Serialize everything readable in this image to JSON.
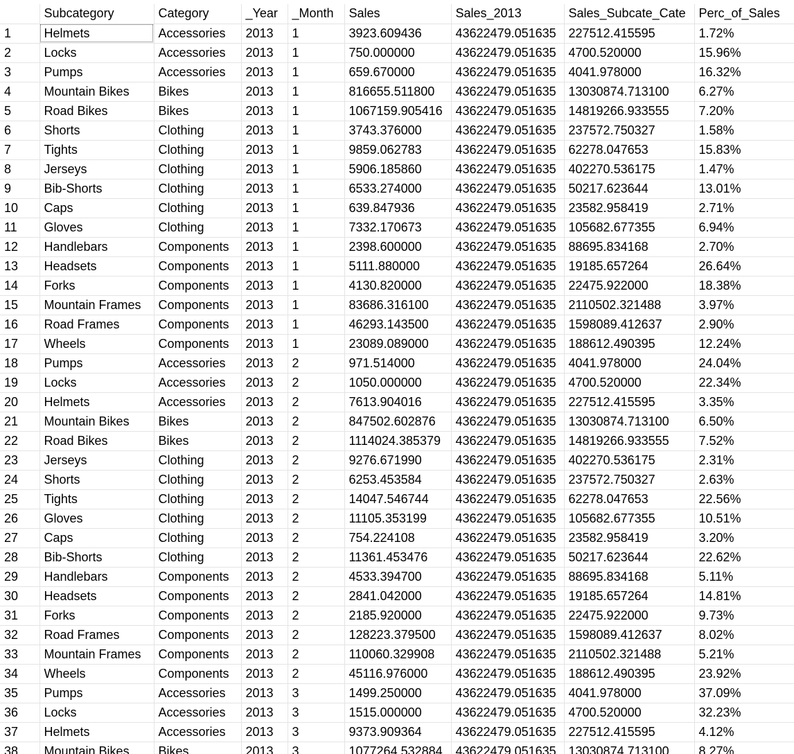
{
  "results_grid": {
    "columns": [
      "",
      "Subcategory",
      "Category",
      "_Year",
      "_Month",
      "Sales",
      "Sales_2013",
      "Sales_Subcate_Cate",
      "Perc_of_Sales"
    ],
    "rows": [
      [
        "1",
        "Helmets",
        "Accessories",
        "2013",
        "1",
        "3923.609436",
        "43622479.051635",
        "227512.415595",
        "1.72%"
      ],
      [
        "2",
        "Locks",
        "Accessories",
        "2013",
        "1",
        "750.000000",
        "43622479.051635",
        "4700.520000",
        "15.96%"
      ],
      [
        "3",
        "Pumps",
        "Accessories",
        "2013",
        "1",
        "659.670000",
        "43622479.051635",
        "4041.978000",
        "16.32%"
      ],
      [
        "4",
        "Mountain Bikes",
        "Bikes",
        "2013",
        "1",
        "816655.511800",
        "43622479.051635",
        "13030874.713100",
        "6.27%"
      ],
      [
        "5",
        "Road Bikes",
        "Bikes",
        "2013",
        "1",
        "1067159.905416",
        "43622479.051635",
        "14819266.933555",
        "7.20%"
      ],
      [
        "6",
        "Shorts",
        "Clothing",
        "2013",
        "1",
        "3743.376000",
        "43622479.051635",
        "237572.750327",
        "1.58%"
      ],
      [
        "7",
        "Tights",
        "Clothing",
        "2013",
        "1",
        "9859.062783",
        "43622479.051635",
        "62278.047653",
        "15.83%"
      ],
      [
        "8",
        "Jerseys",
        "Clothing",
        "2013",
        "1",
        "5906.185860",
        "43622479.051635",
        "402270.536175",
        "1.47%"
      ],
      [
        "9",
        "Bib-Shorts",
        "Clothing",
        "2013",
        "1",
        "6533.274000",
        "43622479.051635",
        "50217.623644",
        "13.01%"
      ],
      [
        "10",
        "Caps",
        "Clothing",
        "2013",
        "1",
        "639.847936",
        "43622479.051635",
        "23582.958419",
        "2.71%"
      ],
      [
        "11",
        "Gloves",
        "Clothing",
        "2013",
        "1",
        "7332.170673",
        "43622479.051635",
        "105682.677355",
        "6.94%"
      ],
      [
        "12",
        "Handlebars",
        "Components",
        "2013",
        "1",
        "2398.600000",
        "43622479.051635",
        "88695.834168",
        "2.70%"
      ],
      [
        "13",
        "Headsets",
        "Components",
        "2013",
        "1",
        "5111.880000",
        "43622479.051635",
        "19185.657264",
        "26.64%"
      ],
      [
        "14",
        "Forks",
        "Components",
        "2013",
        "1",
        "4130.820000",
        "43622479.051635",
        "22475.922000",
        "18.38%"
      ],
      [
        "15",
        "Mountain Frames",
        "Components",
        "2013",
        "1",
        "83686.316100",
        "43622479.051635",
        "2110502.321488",
        "3.97%"
      ],
      [
        "16",
        "Road Frames",
        "Components",
        "2013",
        "1",
        "46293.143500",
        "43622479.051635",
        "1598089.412637",
        "2.90%"
      ],
      [
        "17",
        "Wheels",
        "Components",
        "2013",
        "1",
        "23089.089000",
        "43622479.051635",
        "188612.490395",
        "12.24%"
      ],
      [
        "18",
        "Pumps",
        "Accessories",
        "2013",
        "2",
        "971.514000",
        "43622479.051635",
        "4041.978000",
        "24.04%"
      ],
      [
        "19",
        "Locks",
        "Accessories",
        "2013",
        "2",
        "1050.000000",
        "43622479.051635",
        "4700.520000",
        "22.34%"
      ],
      [
        "20",
        "Helmets",
        "Accessories",
        "2013",
        "2",
        "7613.904016",
        "43622479.051635",
        "227512.415595",
        "3.35%"
      ],
      [
        "21",
        "Mountain Bikes",
        "Bikes",
        "2013",
        "2",
        "847502.602876",
        "43622479.051635",
        "13030874.713100",
        "6.50%"
      ],
      [
        "22",
        "Road Bikes",
        "Bikes",
        "2013",
        "2",
        "1114024.385379",
        "43622479.051635",
        "14819266.933555",
        "7.52%"
      ],
      [
        "23",
        "Jerseys",
        "Clothing",
        "2013",
        "2",
        "9276.671990",
        "43622479.051635",
        "402270.536175",
        "2.31%"
      ],
      [
        "24",
        "Shorts",
        "Clothing",
        "2013",
        "2",
        "6253.453584",
        "43622479.051635",
        "237572.750327",
        "2.63%"
      ],
      [
        "25",
        "Tights",
        "Clothing",
        "2013",
        "2",
        "14047.546744",
        "43622479.051635",
        "62278.047653",
        "22.56%"
      ],
      [
        "26",
        "Gloves",
        "Clothing",
        "2013",
        "2",
        "11105.353199",
        "43622479.051635",
        "105682.677355",
        "10.51%"
      ],
      [
        "27",
        "Caps",
        "Clothing",
        "2013",
        "2",
        "754.224108",
        "43622479.051635",
        "23582.958419",
        "3.20%"
      ],
      [
        "28",
        "Bib-Shorts",
        "Clothing",
        "2013",
        "2",
        "11361.453476",
        "43622479.051635",
        "50217.623644",
        "22.62%"
      ],
      [
        "29",
        "Handlebars",
        "Components",
        "2013",
        "2",
        "4533.394700",
        "43622479.051635",
        "88695.834168",
        "5.11%"
      ],
      [
        "30",
        "Headsets",
        "Components",
        "2013",
        "2",
        "2841.042000",
        "43622479.051635",
        "19185.657264",
        "14.81%"
      ],
      [
        "31",
        "Forks",
        "Components",
        "2013",
        "2",
        "2185.920000",
        "43622479.051635",
        "22475.922000",
        "9.73%"
      ],
      [
        "32",
        "Road Frames",
        "Components",
        "2013",
        "2",
        "128223.379500",
        "43622479.051635",
        "1598089.412637",
        "8.02%"
      ],
      [
        "33",
        "Mountain Frames",
        "Components",
        "2013",
        "2",
        "110060.329908",
        "43622479.051635",
        "2110502.321488",
        "5.21%"
      ],
      [
        "34",
        "Wheels",
        "Components",
        "2013",
        "2",
        "45116.976000",
        "43622479.051635",
        "188612.490395",
        "23.92%"
      ],
      [
        "35",
        "Pumps",
        "Accessories",
        "2013",
        "3",
        "1499.250000",
        "43622479.051635",
        "4041.978000",
        "37.09%"
      ],
      [
        "36",
        "Locks",
        "Accessories",
        "2013",
        "3",
        "1515.000000",
        "43622479.051635",
        "4700.520000",
        "32.23%"
      ],
      [
        "37",
        "Helmets",
        "Accessories",
        "2013",
        "3",
        "9373.909364",
        "43622479.051635",
        "227512.415595",
        "4.12%"
      ],
      [
        "38",
        "Mountain Bikes",
        "Bikes",
        "2013",
        "3",
        "1077264.532884",
        "43622479.051635",
        "13030874.713100",
        "8.27%"
      ]
    ],
    "selected_cell": {
      "row": 0,
      "col": 1
    }
  }
}
